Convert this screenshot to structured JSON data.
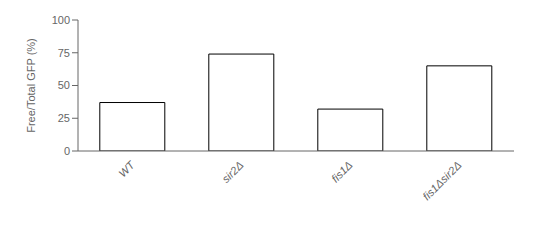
{
  "chart_data": {
    "type": "bar",
    "categories": [
      "WT",
      "sir2Δ",
      "fis1Δ",
      "fis1Δsir2Δ"
    ],
    "values": [
      37,
      74,
      32,
      65
    ],
    "ylabel": "Free/Total GFP (%)",
    "color": "#ffffff",
    "ylim": [
      0,
      100
    ],
    "yticks": [
      0,
      25,
      50,
      75,
      100
    ],
    "grid": false
  }
}
